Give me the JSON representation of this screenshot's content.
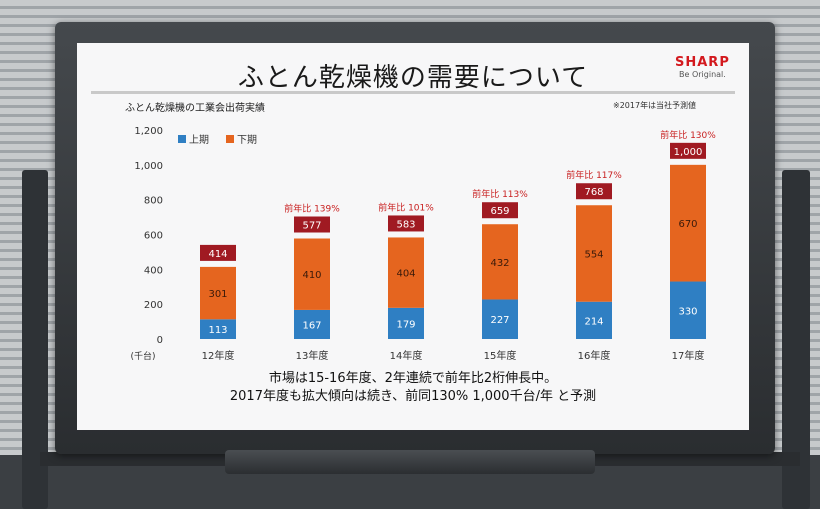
{
  "slide": {
    "title": "ふとん乾燥機の需要について",
    "logo": "SHARP",
    "tagline": "Be Original.",
    "chart_title": "ふとん乾燥機の工業会出荷実績",
    "note": "※2017年は当社予測値",
    "footer_line1": "市場は15-16年度、2年連続で前年比2桁伸長中。",
    "footer_line2": "2017年度も拡大傾向は続き、前同130%  1,000千台/年 と予測"
  },
  "colors": {
    "upper": "#2f7fc3",
    "lower": "#e5651f",
    "total_box": "#a01a22",
    "growth_text": "#c81e1e"
  },
  "chart_data": {
    "type": "bar",
    "stacked": true,
    "categories": [
      "12年度",
      "13年度",
      "14年度",
      "15年度",
      "16年度",
      "17年度"
    ],
    "series": [
      {
        "name": "上期",
        "values": [
          113,
          167,
          179,
          227,
          214,
          330
        ]
      },
      {
        "name": "下期",
        "values": [
          301,
          410,
          404,
          432,
          554,
          670
        ]
      }
    ],
    "totals": [
      "414",
      "577",
      "583",
      "659",
      "768",
      "1,000"
    ],
    "growth_labels": [
      "",
      "前年比 139%",
      "前年比 101%",
      "前年比 113%",
      "前年比 117%",
      "前年比 130%"
    ],
    "y_ticks": [
      "0",
      "200",
      "400",
      "600",
      "800",
      "1,000",
      "1,200"
    ],
    "ylim": [
      0,
      1200
    ],
    "unit_label": "(千台)",
    "legend_position": "top-left",
    "grid": false
  }
}
